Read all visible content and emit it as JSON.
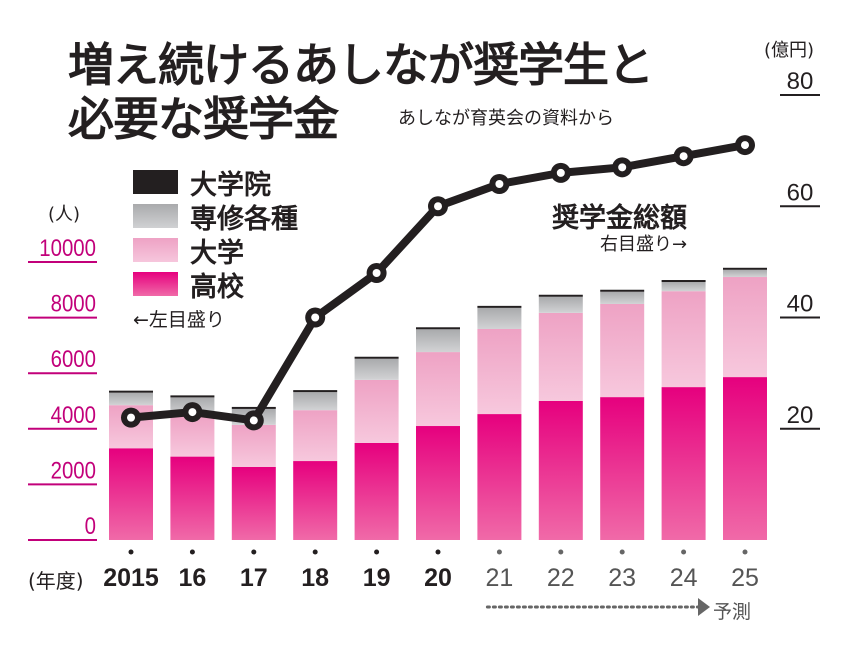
{
  "title_line1": "増え続けるあしなが奨学生と",
  "title_line2": "必要な奨学金",
  "source": "あしなが育英会の資料から",
  "legend": {
    "items": [
      {
        "label": "大学院",
        "color": "#231f20"
      },
      {
        "label": "専修各種",
        "color": "#b8b9bb"
      },
      {
        "label": "大学",
        "color": "#f0a6c8"
      },
      {
        "label": "高校",
        "color": "#e6007e"
      }
    ],
    "left_axis_note": "←左目盛り"
  },
  "line_label": "奨学金総額",
  "line_note": "右目盛り→",
  "x_unit": "(年度)",
  "forecast_label": "予測",
  "colors": {
    "left_axis": "#c2007a",
    "text": "#231f20",
    "forecast_text": "#555555",
    "line": "#231f20"
  },
  "chart_data": {
    "type": "bar",
    "stacked": true,
    "categories": [
      "2015",
      "16",
      "17",
      "18",
      "19",
      "20",
      "21",
      "22",
      "23",
      "24",
      "25"
    ],
    "forecast_from_index": 6,
    "left_axis": {
      "label": "(人)",
      "ylim": [
        0,
        10000
      ],
      "ticks": [
        "0",
        "2000",
        "4000",
        "6000",
        "8000",
        "10000"
      ]
    },
    "right_axis": {
      "label": "(億円)",
      "ylim": [
        0,
        80
      ],
      "ticks": [
        "20",
        "40",
        "60",
        "80"
      ]
    },
    "series": [
      {
        "name": "高校",
        "axis": "left",
        "values": [
          3300,
          3000,
          2630,
          2840,
          3490,
          4100,
          4530,
          5000,
          5140,
          5500,
          5860
        ]
      },
      {
        "name": "大学",
        "axis": "left",
        "values": [
          1550,
          1480,
          1510,
          1830,
          2270,
          2660,
          3060,
          3170,
          3350,
          3450,
          3600
        ]
      },
      {
        "name": "専修各種",
        "axis": "left",
        "values": [
          450,
          650,
          575,
          650,
          760,
          820,
          760,
          580,
          440,
          330,
          260
        ]
      },
      {
        "name": "大学院",
        "axis": "left",
        "values": [
          20,
          20,
          20,
          20,
          30,
          40,
          40,
          40,
          40,
          40,
          40
        ]
      },
      {
        "name": "奨学金総額",
        "type": "line",
        "axis": "right",
        "values": [
          22,
          23,
          21.5,
          40,
          48,
          60,
          64,
          66,
          67,
          69,
          71
        ]
      }
    ],
    "grid": false
  }
}
